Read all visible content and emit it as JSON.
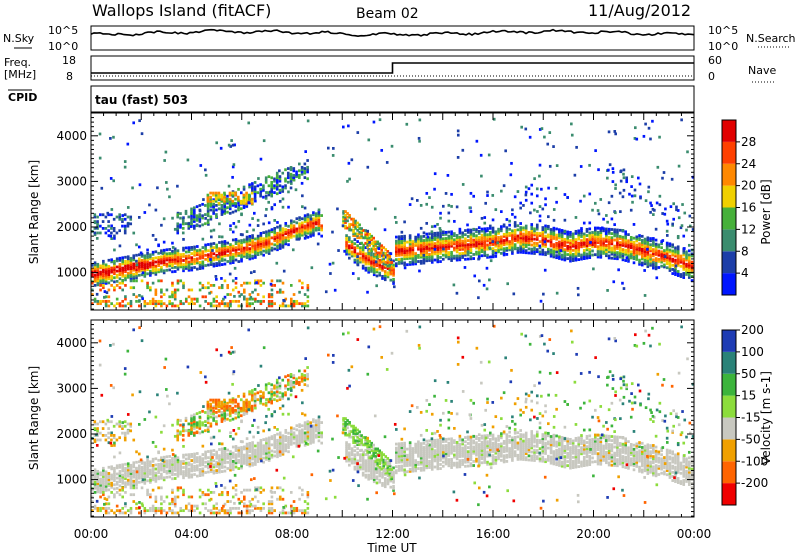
{
  "header": {
    "station": "Wallops Island (fitACF)",
    "beam": "Beam 02",
    "date": "11/Aug/2012"
  },
  "noise_panel": {
    "left_label": "N.Sky",
    "left_ticks": [
      "10^5",
      "10^0"
    ],
    "right_label": "N.Search",
    "right_ticks": [
      "10^5",
      "10^0"
    ]
  },
  "freq_panel": {
    "left_label_1": "Freq.",
    "left_label_2": "[MHz]",
    "left_ticks": [
      "18",
      "8"
    ],
    "right_label": "Nave",
    "right_ticks": [
      "60",
      "0"
    ],
    "cpid_label": "CPID",
    "cpid_value": "tau (fast) 503"
  },
  "colors": {
    "power": [
      "#0016ff",
      "#1c3ea8",
      "#3a8c6e",
      "#46b03a",
      "#f0d000",
      "#ff8800",
      "#ff4000",
      "#e10000"
    ],
    "velocity": [
      "#1e3cb4",
      "#2a8278",
      "#3cb43c",
      "#8cdc3c",
      "#c8c8c0",
      "#f0a000",
      "#ff6400",
      "#f00000"
    ]
  },
  "chart_data": [
    {
      "type": "heatmap",
      "name_on_chart": "Power [dB]",
      "ylabel": "Slant Range [km]",
      "xlabel": "Time UT",
      "x_ticks": [
        "00:00",
        "04:00",
        "08:00",
        "12:00",
        "16:00",
        "20:00",
        "00:00"
      ],
      "x_range_hours": [
        0,
        24
      ],
      "y_ticks": [
        1000,
        2000,
        3000,
        4000
      ],
      "ylim": [
        180,
        4500
      ],
      "colorbar_label": "Power [dB]",
      "colorbar_ticks": [
        4,
        8,
        12,
        16,
        20,
        24,
        28
      ],
      "echo_band_km_vs_hour": {
        "hours": [
          0,
          1,
          2,
          3,
          4,
          5,
          6,
          7,
          8,
          9,
          10,
          11,
          12,
          12.1,
          13,
          14,
          15,
          16,
          17,
          18,
          19,
          20,
          21,
          22,
          23,
          24
        ],
        "range_km": [
          1000,
          1100,
          1200,
          1300,
          1350,
          1450,
          1550,
          1700,
          1950,
          2150,
          1700,
          1300,
          1050,
          1500,
          1550,
          1600,
          1650,
          1700,
          1800,
          1750,
          1600,
          1700,
          1650,
          1500,
          1350,
          1150
        ]
      }
    },
    {
      "type": "heatmap",
      "name_on_chart": "Velocity [m s-1]",
      "ylabel": "Slant Range [km]",
      "xlabel": "Time UT",
      "x_ticks": [
        "00:00",
        "04:00",
        "08:00",
        "12:00",
        "16:00",
        "20:00",
        "00:00"
      ],
      "x_range_hours": [
        0,
        24
      ],
      "y_ticks": [
        1000,
        2000,
        3000,
        4000
      ],
      "ylim": [
        180,
        4500
      ],
      "colorbar_label": "Velocity [m s-1]",
      "colorbar_ticks": [
        200,
        100,
        50,
        15,
        -15,
        -50,
        -100,
        -200
      ]
    }
  ]
}
